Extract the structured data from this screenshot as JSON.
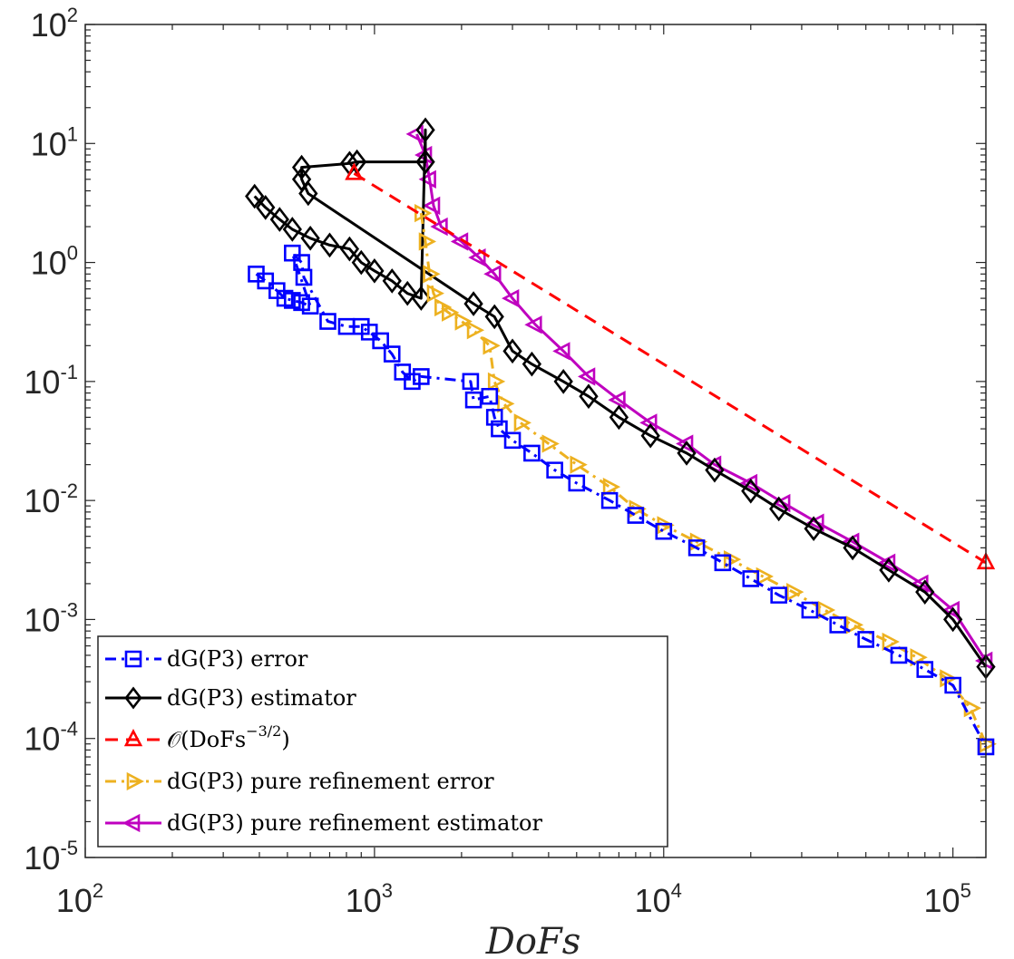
{
  "chart_data": {
    "type": "line",
    "scale": "loglog",
    "xlabel": "DoFs",
    "ylabel": "",
    "xlim": [
      100,
      130000
    ],
    "ylim": [
      1e-05,
      100
    ],
    "x_ticks": [
      {
        "value": 100,
        "base": "10",
        "exp": "2"
      },
      {
        "value": 1000,
        "base": "10",
        "exp": "3"
      },
      {
        "value": 10000,
        "base": "10",
        "exp": "4"
      },
      {
        "value": 100000,
        "base": "10",
        "exp": "5"
      }
    ],
    "y_ticks": [
      {
        "value": 1e-05,
        "base": "10",
        "exp": "-5"
      },
      {
        "value": 0.0001,
        "base": "10",
        "exp": "-4"
      },
      {
        "value": 0.001,
        "base": "10",
        "exp": "-3"
      },
      {
        "value": 0.01,
        "base": "10",
        "exp": "-2"
      },
      {
        "value": 0.1,
        "base": "10",
        "exp": "-1"
      },
      {
        "value": 1,
        "base": "10",
        "exp": "0"
      },
      {
        "value": 10,
        "base": "10",
        "exp": "1"
      },
      {
        "value": 100,
        "base": "10",
        "exp": "2"
      }
    ],
    "legend_position": "bottom-left",
    "series": [
      {
        "name": "dG(P3) error",
        "color": "#0000ff",
        "dash": "dashdot",
        "marker": "square",
        "points": [
          [
            390,
            0.8
          ],
          [
            420,
            0.7
          ],
          [
            460,
            0.58
          ],
          [
            490,
            0.5
          ],
          [
            520,
            0.48
          ],
          [
            560,
            0.46
          ],
          [
            600,
            0.43
          ],
          [
            520,
            1.2
          ],
          [
            560,
            1.0
          ],
          [
            570,
            0.75
          ],
          [
            690,
            0.32
          ],
          [
            800,
            0.29
          ],
          [
            900,
            0.29
          ],
          [
            960,
            0.26
          ],
          [
            1050,
            0.22
          ],
          [
            1150,
            0.17
          ],
          [
            1250,
            0.12
          ],
          [
            1350,
            0.1
          ],
          [
            1450,
            0.11
          ],
          [
            2150,
            0.1
          ],
          [
            2200,
            0.07
          ],
          [
            2500,
            0.075
          ],
          [
            2600,
            0.05
          ],
          [
            2700,
            0.04
          ],
          [
            3000,
            0.032
          ],
          [
            3500,
            0.025
          ],
          [
            4200,
            0.018
          ],
          [
            5000,
            0.014
          ],
          [
            6500,
            0.01
          ],
          [
            8000,
            0.0075
          ],
          [
            10000,
            0.0055
          ],
          [
            13000,
            0.004
          ],
          [
            16000,
            0.003
          ],
          [
            20000,
            0.0022
          ],
          [
            25000,
            0.0016
          ],
          [
            32000,
            0.0012
          ],
          [
            40000,
            0.0009
          ],
          [
            50000,
            0.00068
          ],
          [
            65000,
            0.0005
          ],
          [
            80000,
            0.00038
          ],
          [
            100000,
            0.00028
          ],
          [
            130000,
            8.5e-05
          ]
        ]
      },
      {
        "name": "dG(P3) estimator",
        "color": "#000000",
        "dash": "solid",
        "marker": "diamond",
        "points": [
          [
            385,
            3.6
          ],
          [
            420,
            2.9
          ],
          [
            470,
            2.3
          ],
          [
            520,
            1.9
          ],
          [
            600,
            1.6
          ],
          [
            700,
            1.4
          ],
          [
            820,
            1.3
          ],
          [
            900,
            1.0
          ],
          [
            1000,
            0.85
          ],
          [
            1150,
            0.7
          ],
          [
            1300,
            0.55
          ],
          [
            1450,
            0.5
          ],
          [
            1500,
            13
          ],
          [
            1500,
            7.0
          ],
          [
            870,
            7.0
          ],
          [
            820,
            6.8
          ],
          [
            560,
            6.3
          ],
          [
            560,
            5.0
          ],
          [
            590,
            3.8
          ],
          [
            2200,
            0.45
          ],
          [
            2600,
            0.35
          ],
          [
            3000,
            0.18
          ],
          [
            3500,
            0.14
          ],
          [
            4500,
            0.1
          ],
          [
            5500,
            0.075
          ],
          [
            7000,
            0.05
          ],
          [
            9000,
            0.035
          ],
          [
            12000,
            0.025
          ],
          [
            15000,
            0.018
          ],
          [
            20000,
            0.012
          ],
          [
            25000,
            0.0085
          ],
          [
            33000,
            0.0058
          ],
          [
            45000,
            0.004
          ],
          [
            60000,
            0.0026
          ],
          [
            80000,
            0.0017
          ],
          [
            100000,
            0.001
          ],
          [
            130000,
            0.0004
          ]
        ]
      },
      {
        "name": "O(DoFs^-3/2)",
        "color": "#ff0000",
        "dash": "dashed",
        "marker": "triangle-up",
        "points": [
          [
            850,
            5.6
          ],
          [
            130000,
            0.003
          ]
        ],
        "markers_at": [
          [
            850,
            5.6
          ],
          [
            130000,
            0.003
          ]
        ]
      },
      {
        "name": "dG(P3) pure refinement error",
        "color": "#edb120",
        "dash": "dashdot",
        "marker": "triangle-right",
        "points": [
          [
            1450,
            2.6
          ],
          [
            1500,
            1.5
          ],
          [
            1550,
            0.8
          ],
          [
            1600,
            0.55
          ],
          [
            1700,
            0.42
          ],
          [
            1800,
            0.38
          ],
          [
            2000,
            0.32
          ],
          [
            2200,
            0.27
          ],
          [
            2500,
            0.2
          ],
          [
            2600,
            0.1
          ],
          [
            2800,
            0.065
          ],
          [
            3200,
            0.045
          ],
          [
            4000,
            0.03
          ],
          [
            5000,
            0.02
          ],
          [
            6500,
            0.013
          ],
          [
            8000,
            0.0085
          ],
          [
            10000,
            0.0062
          ],
          [
            13000,
            0.0045
          ],
          [
            17000,
            0.0032
          ],
          [
            22000,
            0.0023
          ],
          [
            28000,
            0.0017
          ],
          [
            36000,
            0.0012
          ],
          [
            45000,
            0.0009
          ],
          [
            60000,
            0.00065
          ],
          [
            75000,
            0.00048
          ],
          [
            95000,
            0.00032
          ],
          [
            115000,
            0.00018
          ],
          [
            130000,
            9e-05
          ]
        ]
      },
      {
        "name": "dG(P3) pure refinement estimator",
        "color": "#bf00bf",
        "dash": "solid",
        "marker": "triangle-left",
        "points": [
          [
            1400,
            12
          ],
          [
            1500,
            8.0
          ],
          [
            1550,
            5.0
          ],
          [
            1600,
            3.0
          ],
          [
            1700,
            2.0
          ],
          [
            2000,
            1.5
          ],
          [
            2300,
            1.1
          ],
          [
            2600,
            0.8
          ],
          [
            3000,
            0.5
          ],
          [
            3600,
            0.3
          ],
          [
            4500,
            0.18
          ],
          [
            5500,
            0.11
          ],
          [
            7000,
            0.07
          ],
          [
            9000,
            0.045
          ],
          [
            12000,
            0.03
          ],
          [
            15000,
            0.02
          ],
          [
            20000,
            0.014
          ],
          [
            26000,
            0.0095
          ],
          [
            34000,
            0.0065
          ],
          [
            45000,
            0.0045
          ],
          [
            60000,
            0.003
          ],
          [
            78000,
            0.002
          ],
          [
            100000,
            0.0012
          ],
          [
            130000,
            0.00045
          ]
        ]
      }
    ],
    "legend": [
      {
        "text": "dG(P3) error"
      },
      {
        "text": "dG(P3) estimator"
      },
      {
        "text": "𝒪(DoFs",
        "sup": "−3/2",
        "tail": ")"
      },
      {
        "text": "dG(P3) pure refinement error"
      },
      {
        "text": "dG(P3) pure refinement estimator"
      }
    ]
  }
}
